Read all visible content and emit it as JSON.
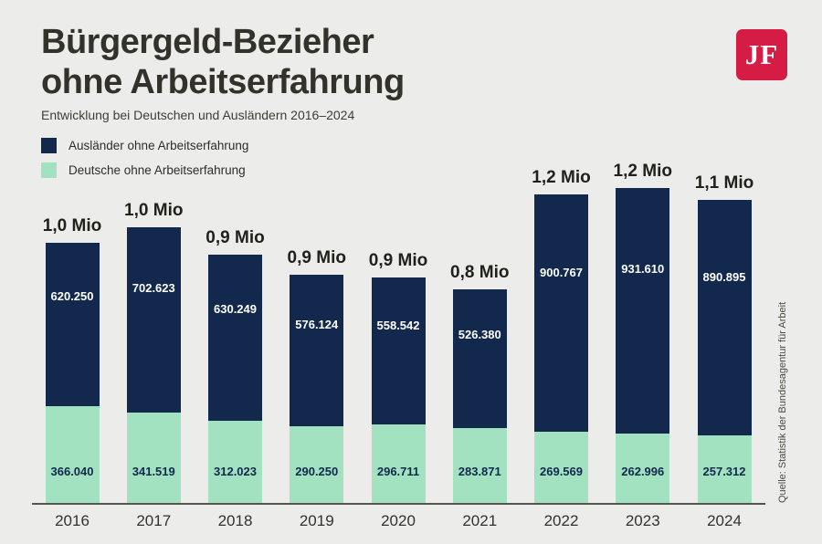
{
  "header": {
    "title_line1": "Bürgergeld-Bezieher",
    "title_line2": "ohne Arbeitserfahrung",
    "subtitle": "Entwicklung bei Deutschen und Ausländern 2016–2024"
  },
  "logo": {
    "text": "JF",
    "color": "#d51c45"
  },
  "source": "Quelle: Statistik der Bundesagentur für Arbeit",
  "colors": {
    "background": "#ececea",
    "auslaender_bar": "#12294d",
    "deutsche_bar": "#a2e2c1",
    "title_text": "#33322a",
    "axis_line": "#55544d"
  },
  "chart_data": {
    "type": "bar",
    "stacked": true,
    "title": "Bürgergeld-Bezieher ohne Arbeitserfahrung",
    "subtitle": "Entwicklung bei Deutschen und Ausländern 2016–2024",
    "xlabel": "",
    "ylabel": "",
    "grid": false,
    "legend_position": "top-left",
    "categories": [
      "2016",
      "2017",
      "2018",
      "2019",
      "2020",
      "2021",
      "2022",
      "2023",
      "2024"
    ],
    "series": [
      {
        "name": "Ausländer ohne Arbeitserfahrung",
        "color": "#12294d",
        "values": [
          620250,
          702623,
          630249,
          576124,
          558542,
          526380,
          900767,
          931610,
          890895
        ],
        "labels": [
          "620.250",
          "702.623",
          "630.249",
          "576.124",
          "558.542",
          "526.380",
          "900.767",
          "931.610",
          "890.895"
        ]
      },
      {
        "name": "Deutsche ohne Arbeitserfahrung",
        "color": "#a2e2c1",
        "values": [
          366040,
          341519,
          312023,
          290250,
          296711,
          283871,
          269569,
          262996,
          257312
        ],
        "labels": [
          "366.040",
          "341.519",
          "312.023",
          "290.250",
          "296.711",
          "283.871",
          "269.569",
          "262.996",
          "257.312"
        ]
      }
    ],
    "total_labels": [
      "1,0 Mio",
      "1,0 Mio",
      "0,9 Mio",
      "0,9 Mio",
      "0,9 Mio",
      "0,8 Mio",
      "1,2 Mio",
      "1,2 Mio",
      "1,1 Mio"
    ]
  }
}
